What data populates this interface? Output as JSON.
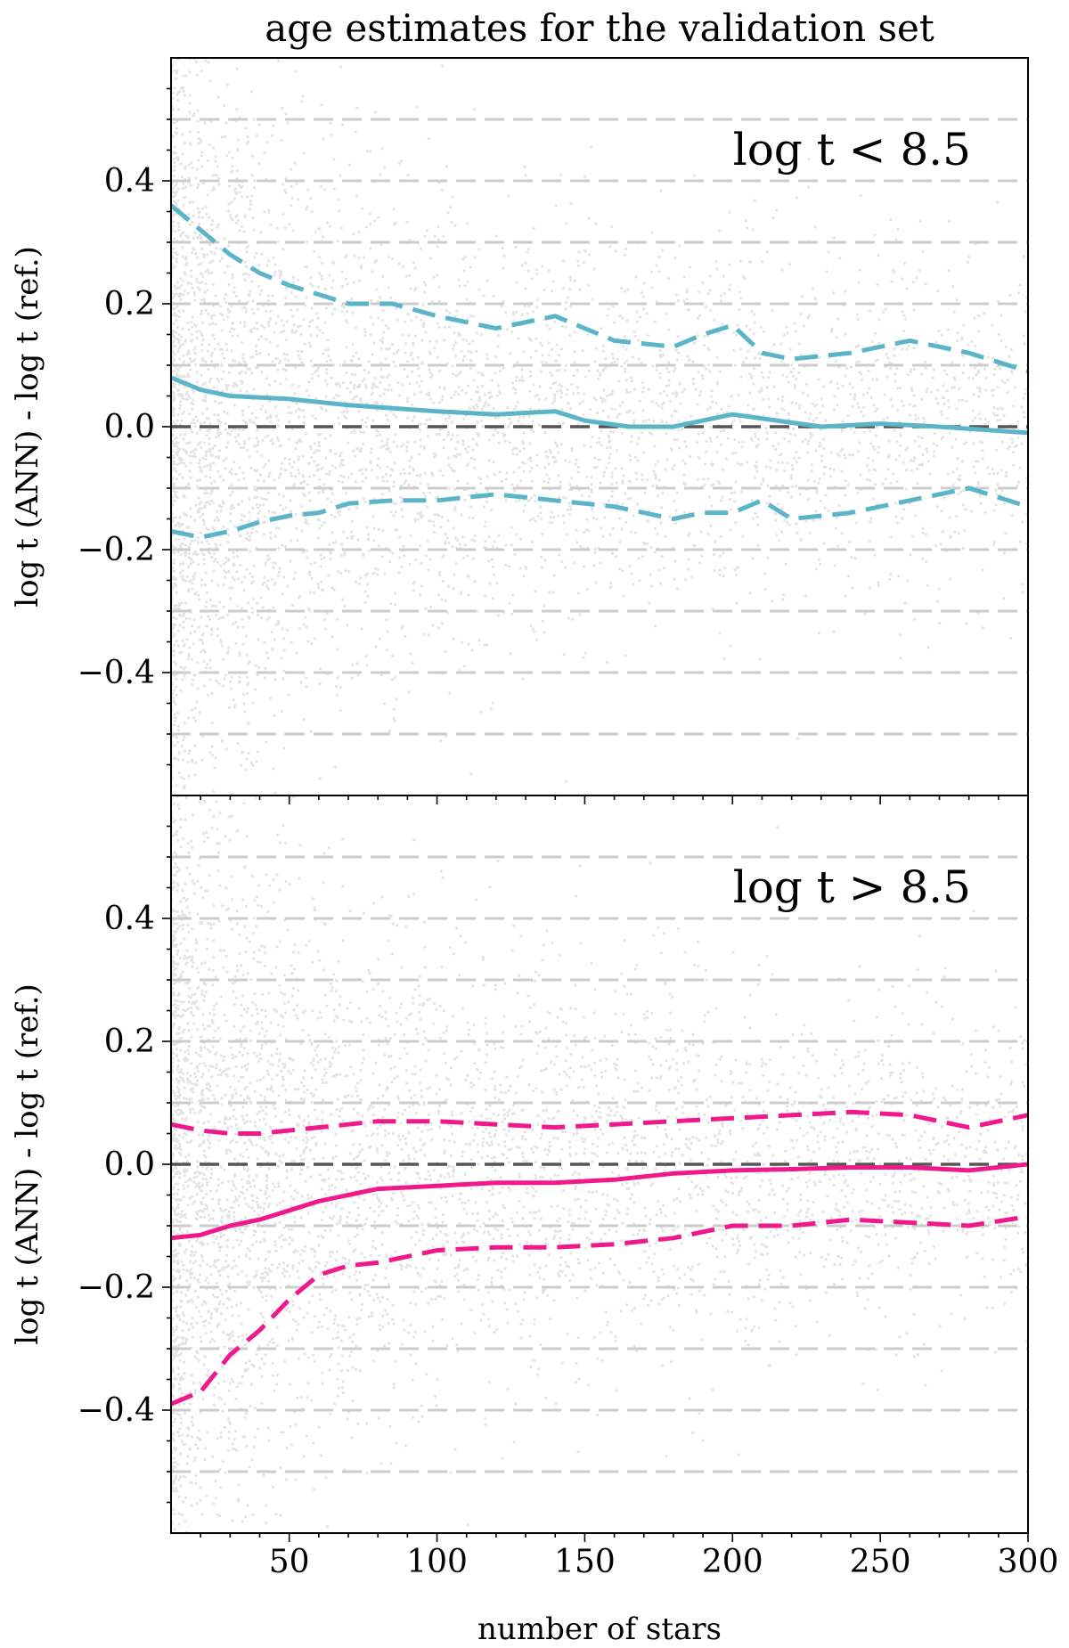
{
  "title": "age estimates for the validation set",
  "xlabel": "number of stars",
  "colors": {
    "panel_top_line": "#5bb5c9",
    "panel_bottom_line": "#f0198c",
    "scatter": "#6a6a6a",
    "zero_line": "#555555",
    "grid": "#cccccc"
  },
  "chart_data": [
    {
      "type": "line",
      "panel": "top",
      "annotation": "log t < 8.5",
      "ylabel": "log t (ANN) - log t (ref.)",
      "xlim": [
        10,
        300
      ],
      "ylim": [
        -0.6,
        0.6
      ],
      "xticks": [
        50,
        100,
        150,
        200,
        250,
        300
      ],
      "yticks": [
        0.4,
        0.2,
        0.0,
        -0.2,
        -0.4
      ],
      "ytick_labels": [
        "0.4",
        "0.2",
        "0.0",
        "−0.2",
        "−0.4"
      ],
      "grid": "horizontal dashed lines every 0.1",
      "zero_line": 0.0,
      "scatter_background": "dense individual star residuals, densest at small number of stars",
      "series": [
        {
          "style": "solid",
          "role": "median",
          "x": [
            10,
            20,
            30,
            50,
            70,
            85,
            100,
            120,
            140,
            150,
            165,
            180,
            200,
            215,
            230,
            250,
            270,
            300
          ],
          "y": [
            0.08,
            0.06,
            0.05,
            0.045,
            0.035,
            0.03,
            0.025,
            0.02,
            0.025,
            0.01,
            0.0,
            0.0,
            0.02,
            0.01,
            0.0,
            0.005,
            0.0,
            -0.01
          ]
        },
        {
          "style": "dashed",
          "role": "upper bound",
          "x": [
            10,
            20,
            30,
            40,
            50,
            60,
            70,
            85,
            100,
            120,
            140,
            160,
            180,
            190,
            200,
            210,
            220,
            240,
            260,
            280,
            300
          ],
          "y": [
            0.36,
            0.32,
            0.28,
            0.25,
            0.23,
            0.215,
            0.2,
            0.2,
            0.18,
            0.16,
            0.18,
            0.14,
            0.13,
            0.15,
            0.165,
            0.12,
            0.11,
            0.12,
            0.14,
            0.12,
            0.09
          ]
        },
        {
          "style": "dashed",
          "role": "lower bound",
          "x": [
            10,
            20,
            30,
            40,
            50,
            60,
            70,
            85,
            100,
            120,
            140,
            160,
            180,
            190,
            200,
            210,
            220,
            240,
            260,
            280,
            300
          ],
          "y": [
            -0.17,
            -0.18,
            -0.17,
            -0.155,
            -0.145,
            -0.14,
            -0.125,
            -0.12,
            -0.12,
            -0.11,
            -0.12,
            -0.13,
            -0.15,
            -0.14,
            -0.14,
            -0.12,
            -0.15,
            -0.14,
            -0.12,
            -0.1,
            -0.13
          ]
        }
      ]
    },
    {
      "type": "line",
      "panel": "bottom",
      "annotation": "log t > 8.5",
      "ylabel": "log t (ANN) - log t (ref.)",
      "xlim": [
        10,
        300
      ],
      "ylim": [
        -0.6,
        0.6
      ],
      "xticks": [
        50,
        100,
        150,
        200,
        250,
        300
      ],
      "xtick_labels": [
        "50",
        "100",
        "150",
        "200",
        "250",
        "300"
      ],
      "yticks": [
        0.4,
        0.2,
        0.0,
        -0.2,
        -0.4
      ],
      "ytick_labels": [
        "0.4",
        "0.2",
        "0.0",
        "−0.2",
        "−0.4"
      ],
      "grid": "horizontal dashed lines every 0.1",
      "zero_line": 0.0,
      "scatter_background": "dense individual star residuals, densest at small number of stars",
      "series": [
        {
          "style": "solid",
          "role": "median",
          "x": [
            10,
            20,
            30,
            40,
            50,
            60,
            70,
            80,
            100,
            120,
            140,
            160,
            180,
            200,
            220,
            240,
            260,
            280,
            300
          ],
          "y": [
            -0.12,
            -0.115,
            -0.1,
            -0.09,
            -0.075,
            -0.06,
            -0.05,
            -0.04,
            -0.035,
            -0.03,
            -0.03,
            -0.025,
            -0.015,
            -0.01,
            -0.008,
            -0.005,
            -0.005,
            -0.01,
            0.0
          ]
        },
        {
          "style": "dashed",
          "role": "upper bound",
          "x": [
            10,
            20,
            30,
            40,
            50,
            60,
            70,
            80,
            100,
            120,
            140,
            160,
            180,
            200,
            220,
            240,
            260,
            280,
            300
          ],
          "y": [
            0.065,
            0.055,
            0.05,
            0.05,
            0.055,
            0.06,
            0.065,
            0.07,
            0.07,
            0.065,
            0.06,
            0.065,
            0.07,
            0.075,
            0.08,
            0.085,
            0.08,
            0.06,
            0.08
          ]
        },
        {
          "style": "dashed",
          "role": "lower bound",
          "x": [
            10,
            20,
            30,
            40,
            50,
            60,
            70,
            80,
            100,
            120,
            140,
            160,
            180,
            200,
            220,
            240,
            260,
            280,
            300
          ],
          "y": [
            -0.39,
            -0.37,
            -0.31,
            -0.27,
            -0.22,
            -0.18,
            -0.165,
            -0.16,
            -0.14,
            -0.135,
            -0.135,
            -0.13,
            -0.12,
            -0.1,
            -0.1,
            -0.09,
            -0.095,
            -0.1,
            -0.085
          ]
        }
      ]
    }
  ]
}
